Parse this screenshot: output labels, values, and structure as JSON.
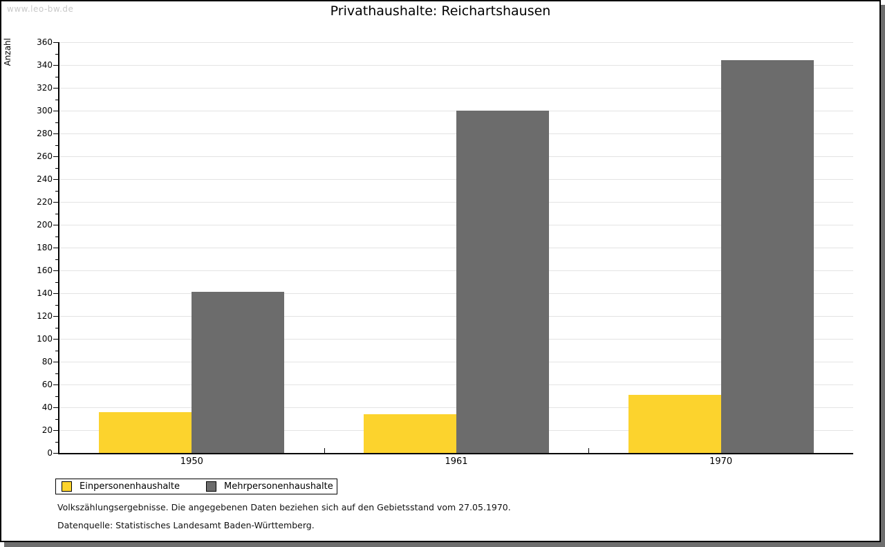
{
  "watermark": "www.leo-bw.de",
  "chart_data": {
    "type": "bar",
    "title": "Privathaushalte: Reichartshausen",
    "ylabel": "Anzahl",
    "xlabel": "",
    "categories": [
      "1950",
      "1961",
      "1970"
    ],
    "series": [
      {
        "name": "Einpersonenhaushalte",
        "color": "#FCD32D",
        "values": [
          36,
          34,
          51
        ]
      },
      {
        "name": "Mehrpersonenhaushalte",
        "color": "#6C6C6C",
        "values": [
          141,
          300,
          344
        ]
      }
    ],
    "ylim": [
      0,
      360
    ],
    "ytick_step": 20,
    "yminor_step": 10,
    "grid": true,
    "legend_position": "bottom-left"
  },
  "footer": {
    "line1": "Volkszählungsergebnisse. Die angegebenen Daten beziehen sich auf den Gebietsstand vom 27.05.1970.",
    "line2": "Datenquelle: Statistisches Landesamt Baden-Württemberg."
  },
  "colors": {
    "shadow": "#6e6e6e",
    "gridline": "#e3e3e3",
    "watermark": "#c9c9c9"
  }
}
